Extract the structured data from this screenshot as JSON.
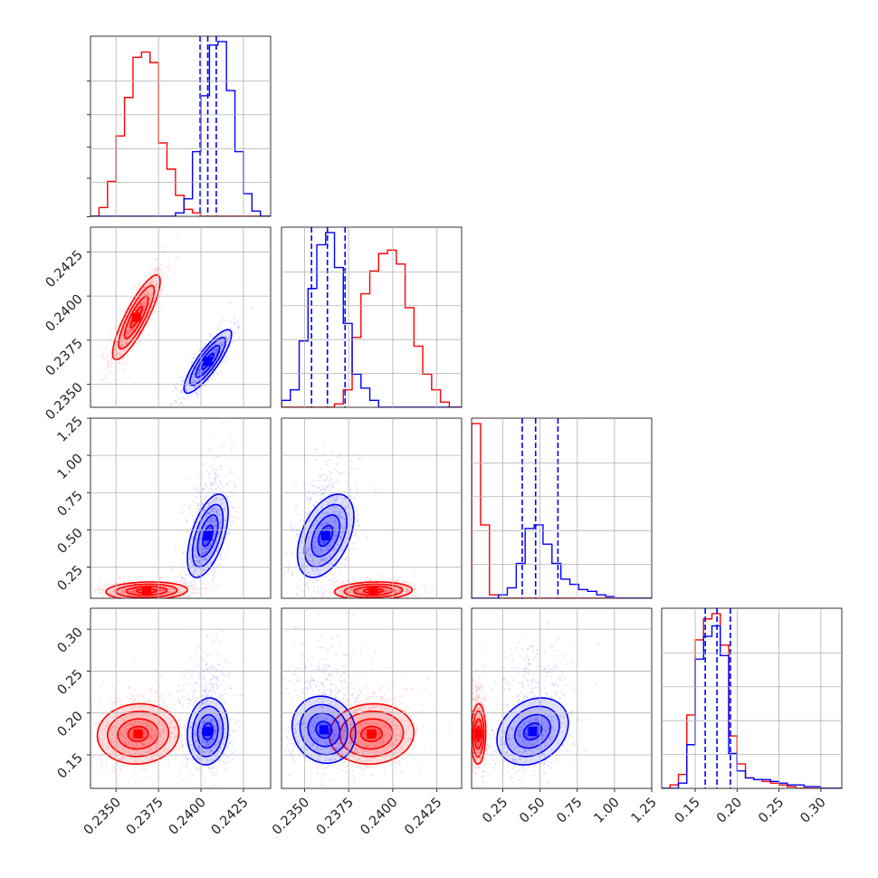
{
  "chart_data": {
    "type": "corner",
    "series": [
      {
        "color": "#ff0000"
      },
      {
        "color": "#0000ff"
      }
    ],
    "grid": true,
    "parameters": [
      {
        "range": [
          0.2335,
          0.2441
        ],
        "ticks": [
          "0.2350",
          "0.2375",
          "0.2400",
          "0.2425"
        ],
        "tick_values": [
          0.235,
          0.2375,
          0.24,
          0.2425
        ]
      },
      {
        "range": [
          0.2337,
          0.2439
        ],
        "ticks": [
          "0.2350",
          "0.2375",
          "0.2400",
          "0.2425"
        ],
        "tick_values": [
          0.235,
          0.2375,
          0.24,
          0.2425
        ]
      },
      {
        "range": [
          0.04,
          1.25
        ],
        "ticks": [
          "0.25",
          "0.50",
          "0.75",
          "1.00",
          "1.25"
        ],
        "tick_values": [
          0.25,
          0.5,
          0.75,
          1.0,
          1.25
        ]
      },
      {
        "range": [
          0.11,
          0.325
        ],
        "ticks": [
          "0.15",
          "0.20",
          "0.25",
          "0.30"
        ],
        "tick_values": [
          0.15,
          0.2,
          0.25,
          0.3
        ]
      }
    ],
    "quantiles": {
      "note": "dashed blue lines mark 16th, 50th, 84th percentiles of the blue series",
      "values": [
        [
          0.23995,
          0.2404,
          0.2409
        ],
        [
          0.2354,
          0.2363,
          0.2373
        ],
        [
          0.38,
          0.47,
          0.62
        ],
        [
          0.162,
          0.176,
          0.192
        ]
      ]
    },
    "histograms": [
      {
        "bin_edges": [
          0.2335,
          0.234,
          0.2345,
          0.235,
          0.2355,
          0.236,
          0.2365,
          0.237,
          0.2375,
          0.238,
          0.2385,
          0.239,
          0.2395,
          0.24,
          0.2405,
          0.241,
          0.2415,
          0.242,
          0.2425,
          0.243,
          0.2435,
          0.2441
        ],
        "red": [
          0.0,
          0.05,
          0.2,
          0.46,
          0.68,
          0.91,
          0.94,
          0.88,
          0.42,
          0.27,
          0.12,
          0.04,
          0.02,
          0.0,
          0.0,
          0.0,
          0.0,
          0.0,
          0.0,
          0.0,
          0.0
        ],
        "blue": [
          0.0,
          0.0,
          0.0,
          0.0,
          0.0,
          0.0,
          0.0,
          0.0,
          0.0,
          0.0,
          0.02,
          0.1,
          0.37,
          0.69,
          0.98,
          1.0,
          0.72,
          0.37,
          0.13,
          0.03,
          0.0
        ]
      },
      {
        "bin_edges": [
          0.2337,
          0.2342,
          0.2347,
          0.2352,
          0.2357,
          0.2362,
          0.2367,
          0.2372,
          0.2377,
          0.2382,
          0.2387,
          0.2392,
          0.2397,
          0.2402,
          0.2407,
          0.2412,
          0.2417,
          0.2422,
          0.2427,
          0.2432,
          0.2439
        ],
        "red": [
          0.0,
          0.0,
          0.0,
          0.0,
          0.0,
          0.0,
          0.02,
          0.1,
          0.4,
          0.65,
          0.78,
          0.88,
          0.9,
          0.82,
          0.57,
          0.35,
          0.19,
          0.1,
          0.03,
          0.0
        ],
        "blue": [
          0.04,
          0.1,
          0.38,
          0.68,
          0.93,
          1.0,
          0.8,
          0.48,
          0.19,
          0.11,
          0.04,
          0.0,
          0.0,
          0.0,
          0.0,
          0.0,
          0.0,
          0.0,
          0.0,
          0.0
        ]
      },
      {
        "bin_edges": [
          0.04,
          0.1,
          0.16,
          0.22,
          0.28,
          0.34,
          0.4,
          0.46,
          0.52,
          0.58,
          0.64,
          0.7,
          0.76,
          0.82,
          0.88,
          0.94,
          1.0,
          1.06,
          1.12,
          1.18,
          1.25
        ],
        "red": [
          1.0,
          0.42,
          0.02,
          0.0,
          0.0,
          0.0,
          0.0,
          0.0,
          0.0,
          0.0,
          0.0,
          0.0,
          0.0,
          0.0,
          0.0,
          0.0,
          0.0,
          0.0,
          0.0,
          0.0
        ],
        "blue": [
          0.0,
          0.0,
          0.0,
          0.02,
          0.06,
          0.2,
          0.4,
          0.42,
          0.31,
          0.2,
          0.11,
          0.08,
          0.05,
          0.04,
          0.02,
          0.01,
          0.0,
          0.0,
          0.0,
          0.0
        ]
      },
      {
        "bin_edges": [
          0.11,
          0.12,
          0.13,
          0.14,
          0.15,
          0.16,
          0.17,
          0.18,
          0.19,
          0.2,
          0.21,
          0.22,
          0.23,
          0.24,
          0.25,
          0.26,
          0.27,
          0.28,
          0.29,
          0.3,
          0.31,
          0.325
        ],
        "red": [
          0.0,
          0.02,
          0.08,
          0.42,
          0.85,
          0.97,
          1.0,
          0.82,
          0.3,
          0.14,
          0.06,
          0.05,
          0.04,
          0.03,
          0.02,
          0.01,
          0.0,
          0.0,
          0.0,
          0.0,
          0.0
        ],
        "blue": [
          0.0,
          0.0,
          0.03,
          0.25,
          0.74,
          0.87,
          0.93,
          0.76,
          0.2,
          0.1,
          0.06,
          0.05,
          0.05,
          0.04,
          0.03,
          0.02,
          0.02,
          0.01,
          0.01,
          0.0,
          0.0
        ]
      }
    ],
    "pairs": [
      {
        "x": 0,
        "y": 1,
        "red": {
          "center": [
            0.2362,
            0.2388
          ],
          "sigma": [
            0.0007,
            0.0012
          ],
          "rho": 0.85
        },
        "blue": {
          "center": [
            0.2404,
            0.2363
          ],
          "sigma": [
            0.0007,
            0.0009
          ],
          "rho": 0.85
        }
      },
      {
        "x": 0,
        "y": 2,
        "red": {
          "center": [
            0.2368,
            0.09
          ],
          "sigma": [
            0.0012,
            0.03
          ],
          "rho": 0.1
        },
        "blue": {
          "center": [
            0.2404,
            0.46
          ],
          "sigma": [
            0.0006,
            0.14
          ],
          "rho": 0.55
        }
      },
      {
        "x": 1,
        "y": 2,
        "red": {
          "center": [
            0.2389,
            0.09
          ],
          "sigma": [
            0.0011,
            0.03
          ],
          "rho": 0.1
        },
        "blue": {
          "center": [
            0.2362,
            0.46
          ],
          "sigma": [
            0.0008,
            0.14
          ],
          "rho": 0.45
        }
      },
      {
        "x": 0,
        "y": 3,
        "red": {
          "center": [
            0.2363,
            0.175
          ],
          "sigma": [
            0.0012,
            0.018
          ],
          "rho": 0.05
        },
        "blue": {
          "center": [
            0.2404,
            0.178
          ],
          "sigma": [
            0.0006,
            0.02
          ],
          "rho": 0.1
        }
      },
      {
        "x": 1,
        "y": 3,
        "red": {
          "center": [
            0.2388,
            0.175
          ],
          "sigma": [
            0.0012,
            0.018
          ],
          "rho": 0.05
        },
        "blue": {
          "center": [
            0.2361,
            0.18
          ],
          "sigma": [
            0.0009,
            0.02
          ],
          "rho": -0.1
        }
      },
      {
        "x": 2,
        "y": 3,
        "red": {
          "center": [
            0.085,
            0.175
          ],
          "sigma": [
            0.025,
            0.018
          ],
          "rho": 0.05
        },
        "blue": {
          "center": [
            0.45,
            0.178
          ],
          "sigma": [
            0.12,
            0.02
          ],
          "rho": 0.25
        }
      }
    ]
  }
}
